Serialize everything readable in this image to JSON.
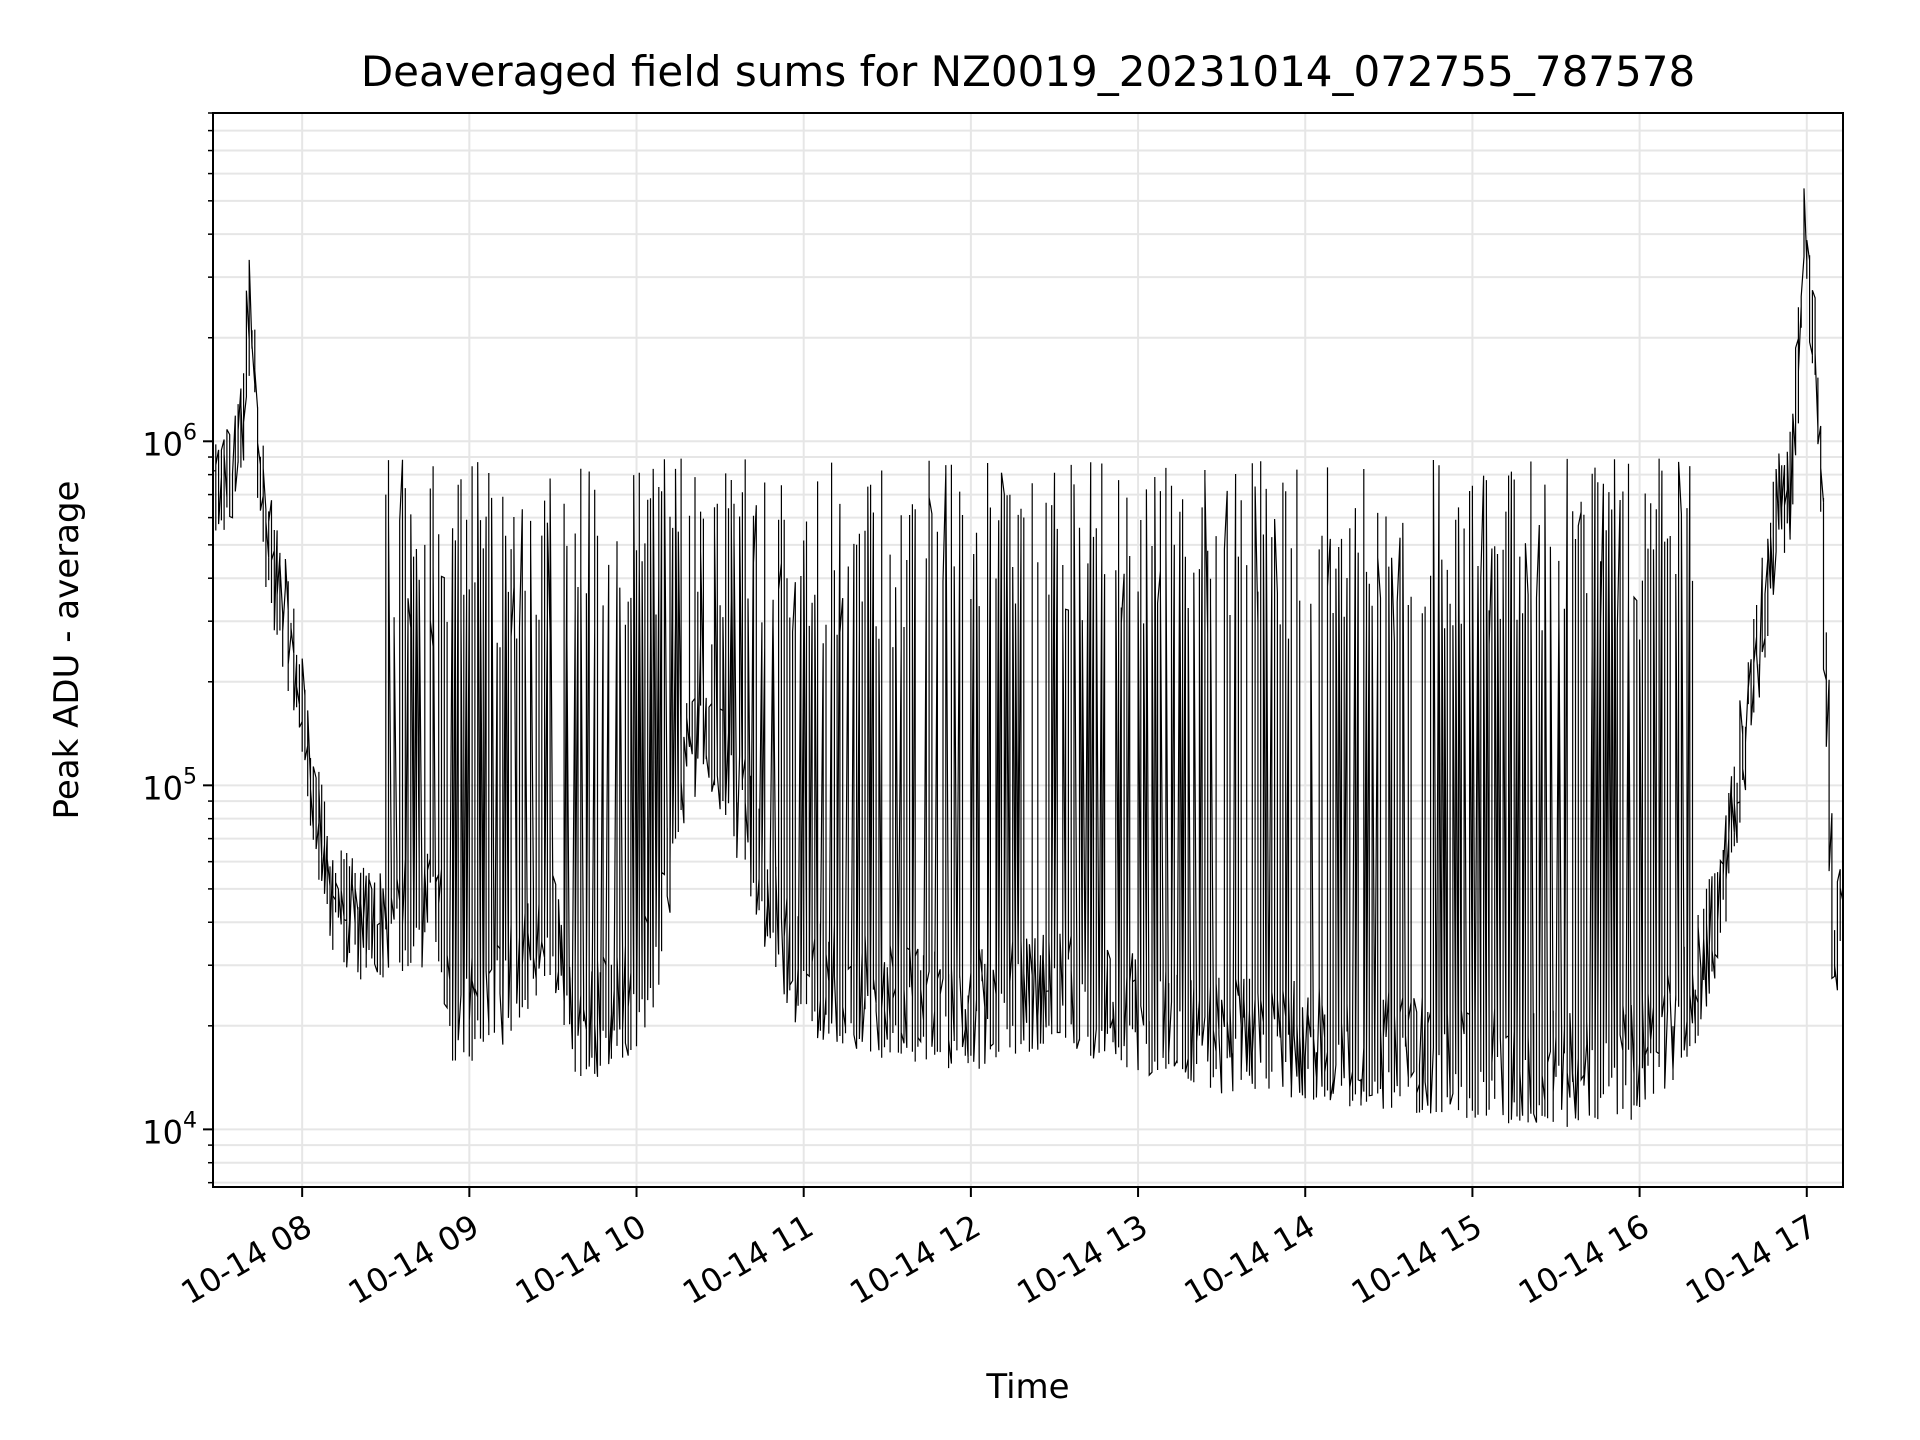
{
  "chart_data": {
    "type": "line",
    "title": "Deaveraged field sums for NZ0019_20231014_072755_787578",
    "xlabel": "Time",
    "ylabel": "Peak ADU - average",
    "yscale": "log",
    "xlim": [
      "2023-10-14 07:28",
      "2023-10-14 17:13"
    ],
    "ylim": [
      6800,
      9000000
    ],
    "grid": true,
    "line_color": "#000000",
    "x_tick_labels": [
      "10-14 08",
      "10-14 09",
      "10-14 10",
      "10-14 11",
      "10-14 12",
      "10-14 13",
      "10-14 14",
      "10-14 15",
      "10-14 16",
      "10-14 17"
    ],
    "x_tick_values": [
      "2023-10-14 08:00",
      "2023-10-14 09:00",
      "2023-10-14 10:00",
      "2023-10-14 11:00",
      "2023-10-14 12:00",
      "2023-10-14 13:00",
      "2023-10-14 14:00",
      "2023-10-14 15:00",
      "2023-10-14 16:00",
      "2023-10-14 17:00"
    ],
    "y_tick_labels": [
      {
        "value": 10000,
        "base": "10",
        "exp": "4"
      },
      {
        "value": 100000,
        "base": "10",
        "exp": "5"
      },
      {
        "value": 1000000,
        "base": "10",
        "exp": "6"
      }
    ],
    "series": [
      {
        "x": [
          "2023-10-14 07:28",
          "2023-10-14 07:32",
          "2023-10-14 07:36",
          "2023-10-14 07:40",
          "2023-10-14 07:42",
          "2023-10-14 07:44",
          "2023-10-14 07:46",
          "2023-10-14 07:48",
          "2023-10-14 07:50",
          "2023-10-14 07:55",
          "2023-10-14 08:00",
          "2023-10-14 08:05",
          "2023-10-14 08:10",
          "2023-10-14 08:15",
          "2023-10-14 08:20",
          "2023-10-14 08:30",
          "2023-10-14 08:40",
          "2023-10-14 08:50",
          "2023-10-14 08:55",
          "2023-10-14 09:00",
          "2023-10-14 09:10",
          "2023-10-14 09:20",
          "2023-10-14 09:30",
          "2023-10-14 09:40",
          "2023-10-14 09:50",
          "2023-10-14 10:00",
          "2023-10-14 10:10",
          "2023-10-14 10:15",
          "2023-10-14 10:20",
          "2023-10-14 10:30",
          "2023-10-14 10:40",
          "2023-10-14 10:50",
          "2023-10-14 11:00",
          "2023-10-14 11:30",
          "2023-10-14 12:00",
          "2023-10-14 12:30",
          "2023-10-14 13:00",
          "2023-10-14 13:30",
          "2023-10-14 14:00",
          "2023-10-14 14:30",
          "2023-10-14 15:00",
          "2023-10-14 15:30",
          "2023-10-14 16:00",
          "2023-10-14 16:10",
          "2023-10-14 16:20",
          "2023-10-14 16:30",
          "2023-10-14 16:40",
          "2023-10-14 16:50",
          "2023-10-14 16:55",
          "2023-10-14 17:00",
          "2023-10-14 17:05",
          "2023-10-14 17:08",
          "2023-10-14 17:10",
          "2023-10-14 17:12"
        ],
        "y": [
          700000,
          750000,
          800000,
          1400000,
          3000000,
          1200000,
          700000,
          500000,
          420000,
          300000,
          180000,
          90000,
          50000,
          45000,
          40000,
          40000,
          42000,
          45000,
          22000,
          21000,
          24000,
          32000,
          40000,
          20000,
          22000,
          25000,
          40000,
          100000,
          140000,
          120000,
          80000,
          40000,
          28000,
          24000,
          22000,
          26000,
          22000,
          19000,
          18000,
          17000,
          16000,
          15000,
          16000,
          19000,
          25000,
          50000,
          180000,
          600000,
          800000,
          4000000,
          1200000,
          150000,
          30000,
          40000
        ]
      }
    ]
  }
}
